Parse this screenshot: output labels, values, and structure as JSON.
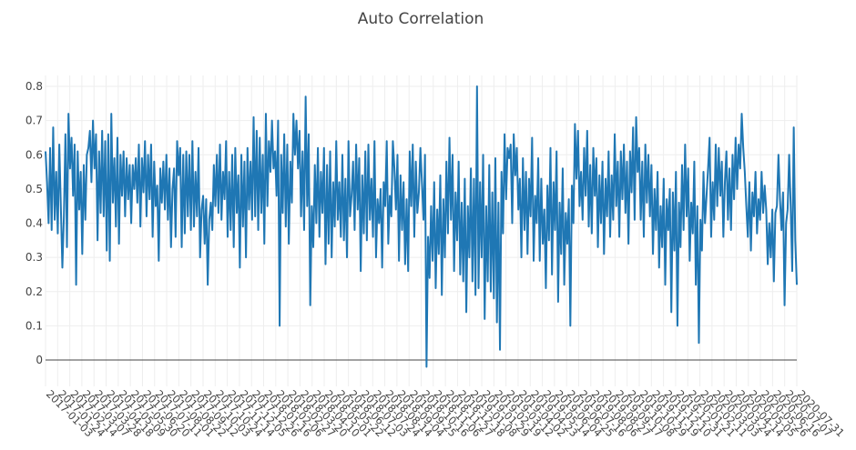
{
  "chart_data": {
    "type": "line",
    "title": "Auto Correlation",
    "xlabel": "",
    "ylabel": "",
    "ylim": [
      -0.077,
      0.833
    ],
    "y_ticks": [
      "0",
      "0.1",
      "0.2",
      "0.3",
      "0.4",
      "0.5",
      "0.6",
      "0.7",
      "0.8"
    ],
    "y_tick_values": [
      0,
      0.1,
      0.2,
      0.3,
      0.4,
      0.5,
      0.6,
      0.7,
      0.8
    ],
    "x_range": [
      "2017-01-03",
      "2020-07-31"
    ],
    "x_ticks": [
      "2017-01-03",
      "2017-01-24",
      "2017-02-14",
      "2017-03-07",
      "2017-03-28",
      "2017-04-18",
      "2017-05-09",
      "2017-05-30",
      "2017-06-20",
      "2017-07-11",
      "2017-08-01",
      "2017-08-22",
      "2017-09-12",
      "2017-10-03",
      "2017-10-24",
      "2017-11-14",
      "2017-12-05",
      "2017-12-26",
      "2018-01-16",
      "2018-02-06",
      "2018-02-27",
      "2018-03-20",
      "2018-04-10",
      "2018-05-01",
      "2018-05-22",
      "2018-06-12",
      "2018-07-03",
      "2018-07-24",
      "2018-08-14",
      "2018-09-04",
      "2018-09-25",
      "2018-10-16",
      "2018-11-06",
      "2018-11-27",
      "2018-12-18",
      "2019-01-08",
      "2019-01-29",
      "2019-02-19",
      "2019-03-12",
      "2019-04-02",
      "2019-04-23",
      "2019-05-14",
      "2019-06-04",
      "2019-06-25",
      "2019-07-16",
      "2019-08-06",
      "2019-08-27",
      "2019-09-17",
      "2019-10-08",
      "2019-10-29",
      "2019-11-19",
      "2019-12-10",
      "2019-12-31",
      "2020-01-21",
      "2020-02-11",
      "2020-03-03",
      "2020-03-24",
      "2020-04-14",
      "2020-05-05",
      "2020-05-26",
      "2020-06-16",
      "2020-07-07",
      "2020-07-31"
    ],
    "grid": true,
    "legend": false,
    "series": [
      {
        "name": "Auto Correlation",
        "color": "#1f77b4",
        "values": [
          0.61,
          0.52,
          0.4,
          0.62,
          0.38,
          0.68,
          0.41,
          0.55,
          0.37,
          0.63,
          0.45,
          0.27,
          0.42,
          0.66,
          0.33,
          0.72,
          0.56,
          0.65,
          0.48,
          0.63,
          0.22,
          0.61,
          0.44,
          0.55,
          0.31,
          0.57,
          0.41,
          0.6,
          0.62,
          0.67,
          0.52,
          0.7,
          0.56,
          0.66,
          0.35,
          0.61,
          0.43,
          0.67,
          0.42,
          0.64,
          0.32,
          0.66,
          0.29,
          0.72,
          0.46,
          0.59,
          0.39,
          0.65,
          0.34,
          0.6,
          0.48,
          0.61,
          0.42,
          0.59,
          0.47,
          0.57,
          0.4,
          0.57,
          0.5,
          0.59,
          0.46,
          0.63,
          0.39,
          0.59,
          0.49,
          0.64,
          0.42,
          0.6,
          0.47,
          0.63,
          0.36,
          0.58,
          0.45,
          0.51,
          0.29,
          0.56,
          0.46,
          0.58,
          0.44,
          0.6,
          0.41,
          0.56,
          0.33,
          0.5,
          0.56,
          0.36,
          0.64,
          0.54,
          0.62,
          0.33,
          0.6,
          0.37,
          0.61,
          0.42,
          0.6,
          0.38,
          0.64,
          0.39,
          0.55,
          0.42,
          0.62,
          0.3,
          0.44,
          0.48,
          0.34,
          0.47,
          0.22,
          0.41,
          0.46,
          0.38,
          0.57,
          0.45,
          0.6,
          0.43,
          0.63,
          0.41,
          0.55,
          0.47,
          0.64,
          0.36,
          0.55,
          0.38,
          0.6,
          0.33,
          0.62,
          0.43,
          0.54,
          0.27,
          0.6,
          0.39,
          0.58,
          0.3,
          0.62,
          0.44,
          0.58,
          0.41,
          0.71,
          0.42,
          0.67,
          0.38,
          0.65,
          0.43,
          0.6,
          0.34,
          0.72,
          0.45,
          0.64,
          0.55,
          0.7,
          0.56,
          0.61,
          0.48,
          0.7,
          0.1,
          0.6,
          0.43,
          0.66,
          0.39,
          0.63,
          0.34,
          0.58,
          0.46,
          0.72,
          0.6,
          0.7,
          0.56,
          0.67,
          0.42,
          0.61,
          0.38,
          0.77,
          0.45,
          0.66,
          0.16,
          0.45,
          0.33,
          0.57,
          0.4,
          0.62,
          0.36,
          0.55,
          0.43,
          0.62,
          0.28,
          0.57,
          0.34,
          0.61,
          0.3,
          0.52,
          0.39,
          0.64,
          0.41,
          0.52,
          0.36,
          0.6,
          0.35,
          0.53,
          0.3,
          0.64,
          0.42,
          0.48,
          0.58,
          0.38,
          0.63,
          0.44,
          0.59,
          0.26,
          0.54,
          0.37,
          0.61,
          0.35,
          0.63,
          0.41,
          0.53,
          0.36,
          0.64,
          0.3,
          0.47,
          0.4,
          0.5,
          0.27,
          0.52,
          0.45,
          0.64,
          0.34,
          0.48,
          0.42,
          0.64,
          0.56,
          0.44,
          0.6,
          0.29,
          0.54,
          0.38,
          0.52,
          0.28,
          0.47,
          0.26,
          0.61,
          0.45,
          0.63,
          0.36,
          0.58,
          0.43,
          0.49,
          0.62,
          0.52,
          0.41,
          0.6,
          -0.02,
          0.36,
          0.24,
          0.45,
          0.29,
          0.52,
          0.21,
          0.44,
          0.31,
          0.54,
          0.19,
          0.47,
          0.3,
          0.58,
          0.37,
          0.65,
          0.41,
          0.6,
          0.26,
          0.49,
          0.35,
          0.58,
          0.25,
          0.46,
          0.23,
          0.53,
          0.14,
          0.45,
          0.3,
          0.56,
          0.23,
          0.53,
          0.19,
          0.8,
          0.21,
          0.52,
          0.3,
          0.6,
          0.12,
          0.45,
          0.23,
          0.57,
          0.2,
          0.49,
          0.18,
          0.59,
          0.11,
          0.46,
          0.03,
          0.55,
          0.37,
          0.66,
          0.47,
          0.62,
          0.59,
          0.63,
          0.4,
          0.66,
          0.54,
          0.62,
          0.44,
          0.53,
          0.3,
          0.59,
          0.38,
          0.55,
          0.31,
          0.53,
          0.42,
          0.65,
          0.29,
          0.48,
          0.4,
          0.59,
          0.29,
          0.53,
          0.34,
          0.44,
          0.21,
          0.51,
          0.35,
          0.62,
          0.25,
          0.52,
          0.38,
          0.61,
          0.17,
          0.46,
          0.31,
          0.56,
          0.22,
          0.43,
          0.34,
          0.47,
          0.1,
          0.51,
          0.4,
          0.69,
          0.53,
          0.67,
          0.45,
          0.55,
          0.41,
          0.62,
          0.48,
          0.67,
          0.39,
          0.57,
          0.37,
          0.62,
          0.48,
          0.59,
          0.33,
          0.54,
          0.4,
          0.58,
          0.31,
          0.53,
          0.42,
          0.61,
          0.36,
          0.54,
          0.41,
          0.66,
          0.45,
          0.58,
          0.36,
          0.61,
          0.47,
          0.63,
          0.43,
          0.58,
          0.34,
          0.61,
          0.49,
          0.68,
          0.41,
          0.71,
          0.55,
          0.62,
          0.41,
          0.58,
          0.36,
          0.63,
          0.46,
          0.6,
          0.42,
          0.57,
          0.31,
          0.5,
          0.38,
          0.55,
          0.27,
          0.45,
          0.33,
          0.53,
          0.22,
          0.47,
          0.38,
          0.5,
          0.14,
          0.49,
          0.32,
          0.55,
          0.1,
          0.46,
          0.33,
          0.57,
          0.38,
          0.63,
          0.42,
          0.56,
          0.29,
          0.46,
          0.37,
          0.58,
          0.22,
          0.45,
          0.05,
          0.41,
          0.32,
          0.55,
          0.4,
          0.48,
          0.56,
          0.65,
          0.36,
          0.52,
          0.41,
          0.63,
          0.45,
          0.62,
          0.48,
          0.58,
          0.36,
          0.52,
          0.61,
          0.41,
          0.56,
          0.38,
          0.6,
          0.47,
          0.65,
          0.5,
          0.63,
          0.56,
          0.72,
          0.62,
          0.55,
          0.45,
          0.36,
          0.52,
          0.32,
          0.49,
          0.42,
          0.55,
          0.37,
          0.47,
          0.41,
          0.55,
          0.43,
          0.51,
          0.44,
          0.28,
          0.4,
          0.3,
          0.44,
          0.23,
          0.43,
          0.45,
          0.6,
          0.47,
          0.38,
          0.49,
          0.16,
          0.4,
          0.44,
          0.6,
          0.45,
          0.26,
          0.68,
          0.35,
          0.22
        ]
      }
    ]
  }
}
